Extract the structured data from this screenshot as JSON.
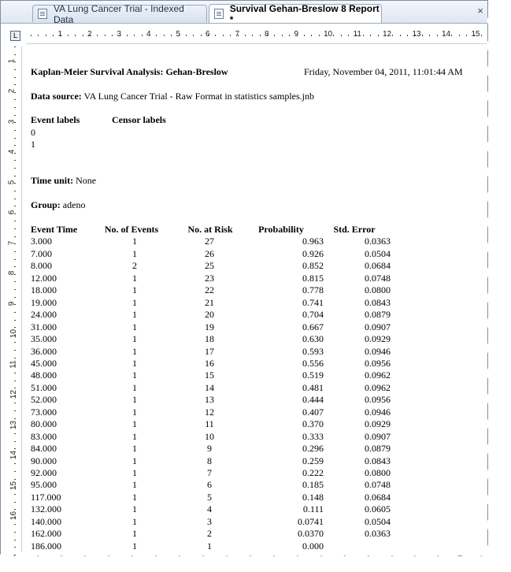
{
  "tabs": [
    {
      "label": "VA Lung Cancer Trial - Indexed Data"
    },
    {
      "label": "Survival Gehan-Breslow 8 Report *"
    }
  ],
  "close_label": "×",
  "ruler": {
    "horizontal_marks": [
      "1",
      "2",
      "3",
      "4",
      "5",
      "6",
      "7",
      "8",
      "9",
      "10",
      "11",
      "12",
      "13",
      "14",
      "15"
    ],
    "vertical_marks": [
      "1",
      "2",
      "3",
      "4",
      "5",
      "6",
      "7",
      "8",
      "9",
      "10",
      "11",
      "12",
      "13",
      "14",
      "15",
      "16"
    ]
  },
  "report": {
    "title": "Kaplan-Meier Survival Analysis:  Gehan-Breslow",
    "date": "Friday, November 04, 2011, 11:01:44 AM",
    "data_source_label": "Data source:",
    "data_source_value": " VA Lung Cancer Trial  - Raw Format in statistics samples.jnb",
    "event_labels_header": "Event labels",
    "censor_labels_header": "Censor labels",
    "event_label_values": [
      "0",
      "1"
    ],
    "time_unit_label": "Time unit:",
    "time_unit_value": " None",
    "group_label": "Group:",
    "group_value": " adeno",
    "columns": [
      "Event Time",
      "No. of Events",
      "No. at Risk",
      "Probability",
      "Std. Error"
    ],
    "rows": [
      [
        "3.000",
        "1",
        "27",
        "0.963",
        "0.0363"
      ],
      [
        "7.000",
        "1",
        "26",
        "0.926",
        "0.0504"
      ],
      [
        "8.000",
        "2",
        "25",
        "0.852",
        "0.0684"
      ],
      [
        "12.000",
        "1",
        "23",
        "0.815",
        "0.0748"
      ],
      [
        "18.000",
        "1",
        "22",
        "0.778",
        "0.0800"
      ],
      [
        "19.000",
        "1",
        "21",
        "0.741",
        "0.0843"
      ],
      [
        "24.000",
        "1",
        "20",
        "0.704",
        "0.0879"
      ],
      [
        "31.000",
        "1",
        "19",
        "0.667",
        "0.0907"
      ],
      [
        "35.000",
        "1",
        "18",
        "0.630",
        "0.0929"
      ],
      [
        "36.000",
        "1",
        "17",
        "0.593",
        "0.0946"
      ],
      [
        "45.000",
        "1",
        "16",
        "0.556",
        "0.0956"
      ],
      [
        "48.000",
        "1",
        "15",
        "0.519",
        "0.0962"
      ],
      [
        "51.000",
        "1",
        "14",
        "0.481",
        "0.0962"
      ],
      [
        "52.000",
        "1",
        "13",
        "0.444",
        "0.0956"
      ],
      [
        "73.000",
        "1",
        "12",
        "0.407",
        "0.0946"
      ],
      [
        "80.000",
        "1",
        "11",
        "0.370",
        "0.0929"
      ],
      [
        "83.000",
        "1",
        "10",
        "0.333",
        "0.0907"
      ],
      [
        "84.000",
        "1",
        "9",
        "0.296",
        "0.0879"
      ],
      [
        "90.000",
        "1",
        "8",
        "0.259",
        "0.0843"
      ],
      [
        "92.000",
        "1",
        "7",
        "0.222",
        "0.0800"
      ],
      [
        "95.000",
        "1",
        "6",
        "0.185",
        "0.0748"
      ],
      [
        "117.000",
        "1",
        "5",
        "0.148",
        "0.0684"
      ],
      [
        "132.000",
        "1",
        "4",
        "0.111",
        "0.0605"
      ],
      [
        "140.000",
        "1",
        "3",
        "0.0741",
        "0.0504"
      ],
      [
        "162.000",
        "1",
        "2",
        "0.0370",
        "0.0363"
      ],
      [
        "186.000",
        "1",
        "1",
        "0.000",
        ""
      ]
    ]
  }
}
